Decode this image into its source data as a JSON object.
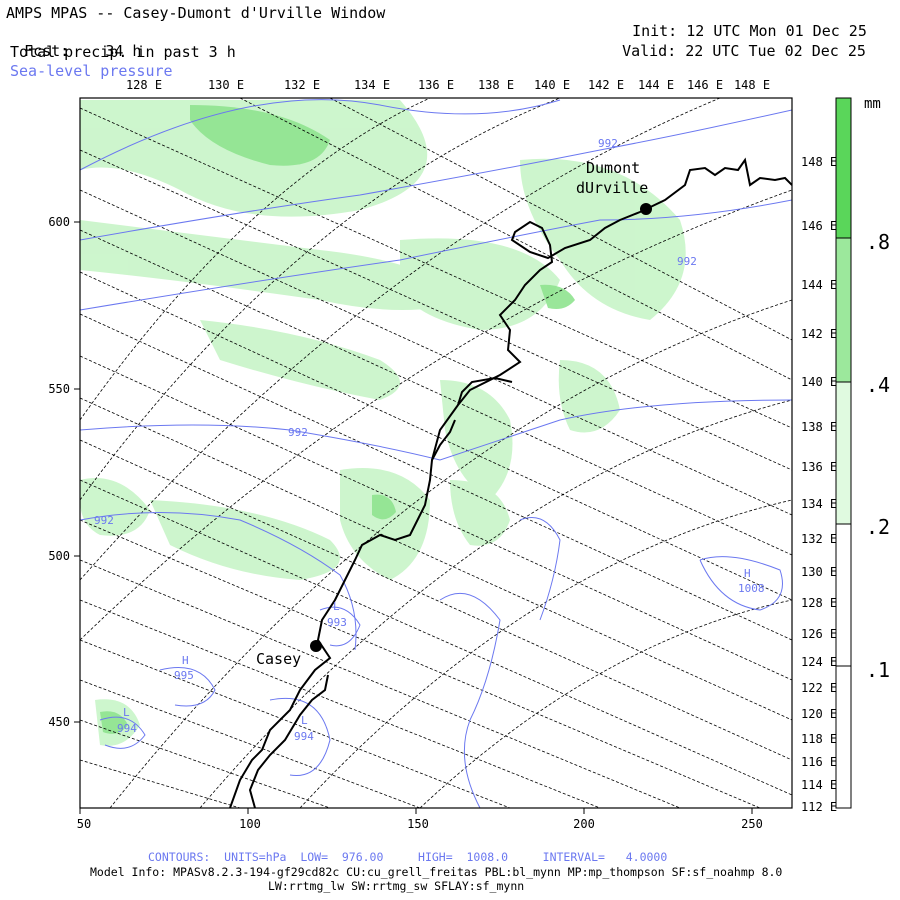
{
  "header": {
    "title": "AMPS MPAS -- Casey-Dumont d'Urville Window",
    "fcst_label": "Fcst:",
    "fcst_value": "34 h",
    "field": "Total precip. in past 3 h",
    "overlay": "Sea-level pressure",
    "init_label": "Init:",
    "init_value": "12 UTC Mon 01 Dec 25",
    "valid_label": "Valid:",
    "valid_value": "22 UTC Tue 02 Dec 25"
  },
  "map": {
    "top_lon_labels": [
      "128 E",
      "130 E",
      "132 E",
      "134 E",
      "136 E",
      "138 E",
      "140 E",
      "142 E",
      "144 E",
      "146 E",
      "148 E"
    ],
    "right_lon_labels": [
      "148 E",
      "146 E",
      "144 E",
      "142 E",
      "140 E",
      "138 E",
      "136 E",
      "134 E",
      "132 E",
      "130 E",
      "128 E",
      "126 E",
      "124 E",
      "122 E",
      "120 E",
      "118 E",
      "116 E",
      "114 E",
      "112 E"
    ],
    "x_axis": {
      "ticks": [
        50,
        100,
        150,
        200,
        250
      ],
      "range": [
        50,
        262
      ]
    },
    "y_axis": {
      "ticks": [
        450,
        500,
        550,
        600
      ],
      "range": [
        422,
        640
      ]
    },
    "stations": [
      {
        "name_line1": "Dumont",
        "name_line2": "dUrville"
      },
      {
        "name_line1": "Casey"
      }
    ],
    "pressure_labels": [
      {
        "text": "992"
      },
      {
        "text": "992"
      },
      {
        "text": "992"
      },
      {
        "text": "992"
      },
      {
        "text": "H"
      },
      {
        "text": "1008"
      },
      {
        "text": "L"
      },
      {
        "text": "993"
      },
      {
        "text": "H"
      },
      {
        "text": "995"
      },
      {
        "text": "L"
      },
      {
        "text": "994"
      },
      {
        "text": "L"
      },
      {
        "text": "994"
      }
    ],
    "colors": {
      "coast": "#000000",
      "isobar": "#6b78f0",
      "grid": "#000000",
      "precip_light": "#c8f5c8",
      "precip_mid": "#9ce89c",
      "precip_dark": "#5ad65a"
    }
  },
  "colorbar": {
    "unit": "mm",
    "labels": [
      ".8",
      ".4",
      ".2",
      ".1"
    ],
    "colors": [
      "#5ad65a",
      "#9ce89c",
      "#e0fae0",
      "#ffffff"
    ]
  },
  "footer": {
    "contours": "CONTOURS:  UNITS=hPa  LOW=  976.00     HIGH=  1008.0     INTERVAL=   4.0000",
    "model_info": "Model Info: MPASv8.2.3-194-gf29cd82c CU:cu_grell_freitas PBL:bl_mynn MP:mp_thompson SF:sf_noahmp 8.0",
    "model_info2": "LW:rrtmg_lw SW:rrtmg_sw SFLAY:sf_mynn"
  }
}
